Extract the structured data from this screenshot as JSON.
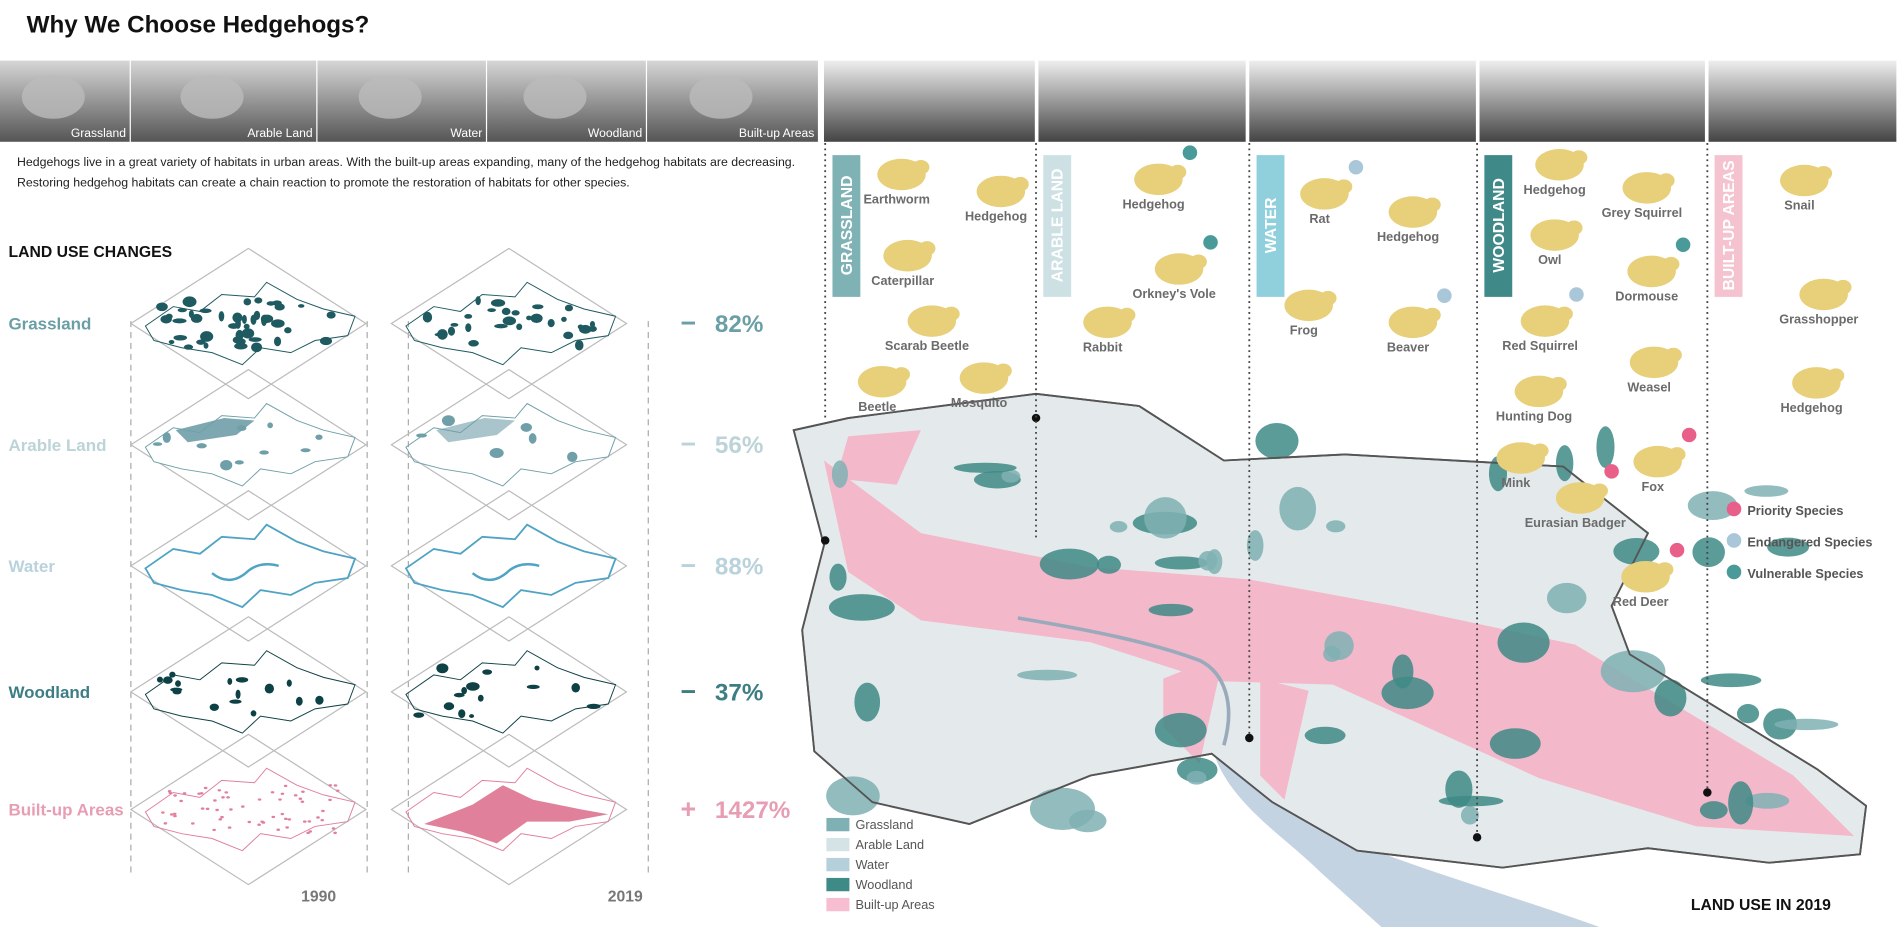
{
  "header": {
    "title": "Why We Choose Hedgehogs?"
  },
  "photo_strip": [
    "Grassland",
    "Arable Land",
    "Water",
    "Woodland",
    "Built-up Areas"
  ],
  "intro": [
    "Hedgehogs live in a great variety of habitats in urban areas. With the built-up areas expanding, many of the hedgehog habitats are decreasing.",
    "Restoring hedgehog habitats can create a chain reaction to promote the restoration of habitats for other species."
  ],
  "land_use_changes": {
    "title": "LAND USE CHANGES",
    "years": [
      "1990",
      "2019"
    ],
    "rows": [
      {
        "name": "Grassland",
        "sign": "−",
        "change": "82%",
        "color": "#6a9fa6",
        "fill": "#1e5a60"
      },
      {
        "name": "Arable Land",
        "sign": "−",
        "change": "56%",
        "color": "#bcd3d8",
        "fill": "#6f9fa8"
      },
      {
        "name": "Water",
        "sign": "−",
        "change": "88%",
        "color": "#b9d2dc",
        "fill": "#4fa3c4"
      },
      {
        "name": "Woodland",
        "sign": "−",
        "change": "37%",
        "color": "#3c7e84",
        "fill": "#0e4145"
      },
      {
        "name": "Built-up Areas",
        "sign": "+",
        "change": "1427%",
        "color": "#e79db2",
        "fill": "#e0809a"
      }
    ]
  },
  "habitats": [
    {
      "label": "GRASSLAND",
      "color": "#7fb2b5",
      "species": [
        {
          "name": "Earthworm"
        },
        {
          "name": "Hedgehog"
        },
        {
          "name": "Caterpillar"
        },
        {
          "name": "Scarab Beetle"
        },
        {
          "name": "Beetle"
        },
        {
          "name": "Mosquito"
        }
      ]
    },
    {
      "label": "ARABLE LAND",
      "color": "#cde0e4",
      "species": [
        {
          "name": "Hedgehog",
          "dot": "#4a9a99"
        },
        {
          "name": "Orkney's Vole",
          "dot": "#4a9a99"
        },
        {
          "name": "Rabbit"
        }
      ]
    },
    {
      "label": "WATER",
      "color": "#8fd0dc",
      "species": [
        {
          "name": "Rat",
          "dot": "#a9c7d8"
        },
        {
          "name": "Hedgehog"
        },
        {
          "name": "Frog"
        },
        {
          "name": "Beaver",
          "dot": "#a9c7d8"
        }
      ]
    },
    {
      "label": "WOODLAND",
      "color": "#3f8a89",
      "species": [
        {
          "name": "Hedgehog"
        },
        {
          "name": "Grey Squirrel"
        },
        {
          "name": "Owl"
        },
        {
          "name": "Dormouse",
          "dot": "#4a9a99"
        },
        {
          "name": "Red Squirrel",
          "dot": "#a9c7d8"
        },
        {
          "name": "Weasel"
        },
        {
          "name": "Hunting Dog"
        },
        {
          "name": "Fox",
          "dot": "#e8608a"
        },
        {
          "name": "Mink"
        },
        {
          "name": "Eurasian Badger",
          "dot": "#e8608a"
        },
        {
          "name": "Red Deer",
          "dot": "#e8608a"
        }
      ]
    },
    {
      "label": "BUILT-UP AREAS",
      "color": "#f4c3cf",
      "species": [
        {
          "name": "Snail"
        },
        {
          "name": "Grasshopper"
        },
        {
          "name": "Hedgehog"
        }
      ]
    }
  ],
  "species_legend": [
    {
      "label": "Priority Species",
      "color": "#e8608a"
    },
    {
      "label": "Endangered Species",
      "color": "#a9c7d8"
    },
    {
      "label": "Vulnerable Species",
      "color": "#4a9a99"
    }
  ],
  "map": {
    "title": "LAND USE IN 2019",
    "legend": [
      {
        "label": "Grassland",
        "color": "#7fb0b3"
      },
      {
        "label": "Arable Land",
        "color": "#d5e3e6"
      },
      {
        "label": "Water",
        "color": "#b5cfdb"
      },
      {
        "label": "Woodland",
        "color": "#3e8a86"
      },
      {
        "label": "Built-up Areas",
        "color": "#f7bdd0"
      }
    ]
  }
}
